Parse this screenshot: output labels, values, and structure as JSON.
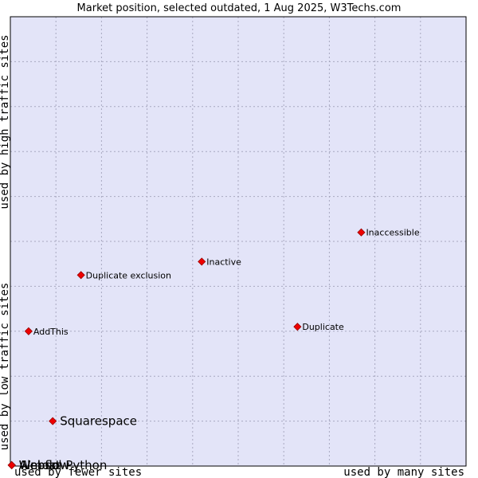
{
  "chart_data": {
    "type": "scatter",
    "title": "Market position, selected outdated, 1 Aug 2025, W3Techs.com",
    "x_axis": {
      "low_label": "used by fewer sites",
      "high_label": "used by many sites",
      "range": [
        0,
        100
      ]
    },
    "y_axis": {
      "low_label": "used by low traffic sites",
      "high_label": "used by high traffic sites",
      "range": [
        0,
        100
      ]
    },
    "grid": true,
    "points": [
      {
        "name": "Inaccessible",
        "x": 77,
        "y": 52,
        "emphasis": false
      },
      {
        "name": "Inactive",
        "x": 42,
        "y": 45.5,
        "emphasis": false
      },
      {
        "name": "Duplicate exclusion",
        "x": 15.5,
        "y": 42.5,
        "emphasis": false
      },
      {
        "name": "Duplicate",
        "x": 63,
        "y": 31,
        "emphasis": false
      },
      {
        "name": "AddThis",
        "x": 4,
        "y": 30,
        "emphasis": false
      },
      {
        "name": "Squarespace",
        "x": 9.3,
        "y": 10,
        "emphasis": true
      },
      {
        "name": "Webflow",
        "x": 0.3,
        "y": 0.2,
        "emphasis": true
      },
      {
        "name": "Almost",
        "x": 0.3,
        "y": 0.2,
        "emphasis": true
      },
      {
        "name": "Websol Python",
        "x": 0.3,
        "y": 0.2,
        "emphasis": true
      }
    ]
  },
  "colors": {
    "plot_bg": "#e3e4f8",
    "grid": "#a8a8c0",
    "marker": "#ee0000",
    "marker_stroke": "#990000"
  }
}
